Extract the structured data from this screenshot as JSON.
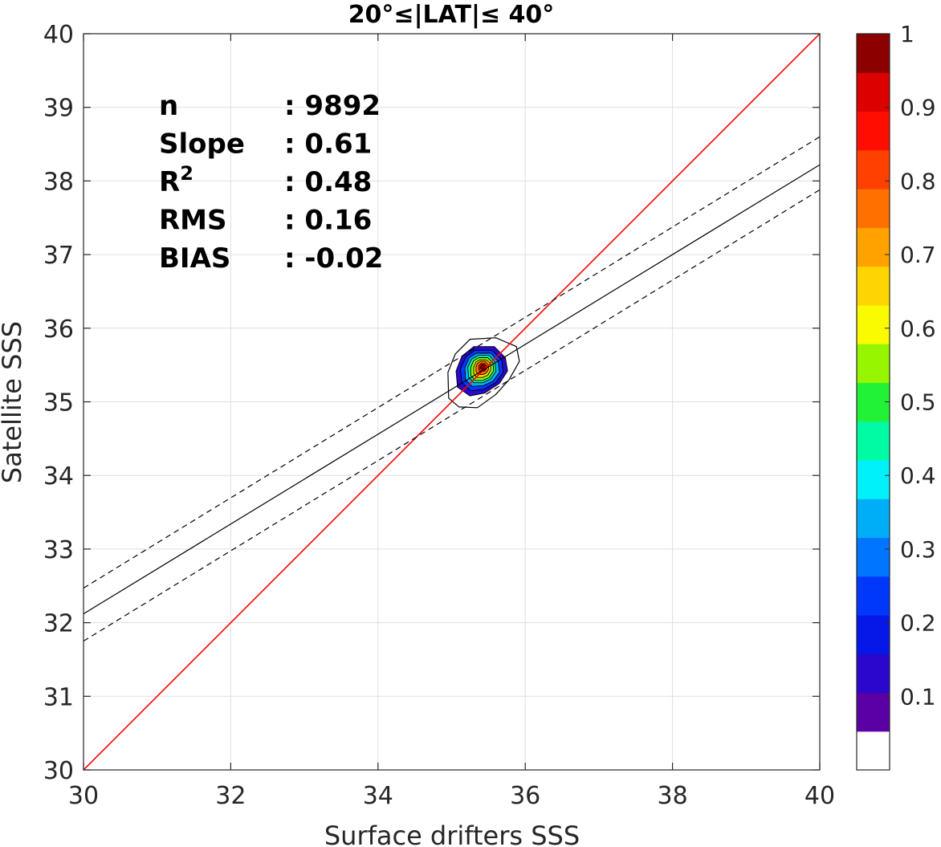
{
  "chart_data": {
    "type": "scatter",
    "subtype": "density-contour",
    "title": "20°≤|LAT|≤ 40°",
    "xlabel": "Surface drifters SSS",
    "ylabel": "Satellite SSS",
    "xlim": [
      30,
      40
    ],
    "ylim": [
      30,
      40
    ],
    "xticks": [
      "30",
      "32",
      "34",
      "36",
      "38",
      "40"
    ],
    "yticks": [
      "30",
      "31",
      "32",
      "33",
      "34",
      "35",
      "36",
      "37",
      "38",
      "39",
      "40"
    ],
    "grid": true,
    "stats": [
      {
        "label": "n",
        "sep": ": ",
        "value": "9892"
      },
      {
        "label": "Slope",
        "sep": ": ",
        "value": "0.61"
      },
      {
        "label": "R",
        "sup": "2",
        "sep": ": ",
        "value": "0.48"
      },
      {
        "label": "RMS",
        "sep": ": ",
        "value": "0.16"
      },
      {
        "label": "BIAS",
        "sep": ": ",
        "value": "-0.02"
      }
    ],
    "lines": [
      {
        "name": "one-to-one",
        "style": "solid",
        "color": "#ff0000",
        "points": [
          [
            30,
            30
          ],
          [
            40,
            40
          ]
        ]
      },
      {
        "name": "regression",
        "style": "solid",
        "color": "#000000",
        "points": [
          [
            30,
            32.12
          ],
          [
            40,
            38.22
          ]
        ]
      },
      {
        "name": "upper-bound",
        "style": "dashed",
        "color": "#000000",
        "points": [
          [
            30,
            32.47
          ],
          [
            40,
            38.6
          ]
        ]
      },
      {
        "name": "lower-bound",
        "style": "dashed",
        "color": "#000000",
        "points": [
          [
            30,
            31.75
          ],
          [
            40,
            37.88
          ]
        ]
      }
    ],
    "density": {
      "center": [
        35.42,
        35.47
      ],
      "levels": [
        {
          "level": 0.05,
          "points": [
            [
              35.25,
              35.85
            ],
            [
              35.6,
              35.87
            ],
            [
              35.88,
              35.75
            ],
            [
              35.92,
              35.55
            ],
            [
              35.78,
              35.3
            ],
            [
              35.6,
              35.1
            ],
            [
              35.35,
              34.92
            ],
            [
              35.1,
              34.93
            ],
            [
              34.96,
              35.05
            ],
            [
              34.95,
              35.4
            ],
            [
              35.05,
              35.65
            ]
          ]
        },
        {
          "level": 0.15,
          "points": [
            [
              35.3,
              35.75
            ],
            [
              35.58,
              35.75
            ],
            [
              35.73,
              35.6
            ],
            [
              35.76,
              35.42
            ],
            [
              35.65,
              35.25
            ],
            [
              35.45,
              35.12
            ],
            [
              35.25,
              35.08
            ],
            [
              35.08,
              35.2
            ],
            [
              35.06,
              35.42
            ],
            [
              35.14,
              35.62
            ]
          ]
        },
        {
          "level": 0.25,
          "points": [
            [
              35.32,
              35.7
            ],
            [
              35.55,
              35.7
            ],
            [
              35.68,
              35.57
            ],
            [
              35.7,
              35.4
            ],
            [
              35.6,
              35.26
            ],
            [
              35.44,
              35.17
            ],
            [
              35.26,
              35.15
            ],
            [
              35.14,
              35.26
            ],
            [
              35.12,
              35.45
            ],
            [
              35.2,
              35.62
            ]
          ]
        },
        {
          "level": 0.35,
          "points": [
            [
              35.34,
              35.66
            ],
            [
              35.53,
              35.66
            ],
            [
              35.63,
              35.55
            ],
            [
              35.65,
              35.4
            ],
            [
              35.56,
              35.28
            ],
            [
              35.43,
              35.22
            ],
            [
              35.28,
              35.21
            ],
            [
              35.19,
              35.3
            ],
            [
              35.18,
              35.46
            ],
            [
              35.24,
              35.6
            ]
          ]
        },
        {
          "level": 0.45,
          "points": [
            [
              35.36,
              35.63
            ],
            [
              35.51,
              35.63
            ],
            [
              35.59,
              35.54
            ],
            [
              35.6,
              35.41
            ],
            [
              35.53,
              35.31
            ],
            [
              35.42,
              35.26
            ],
            [
              35.3,
              35.26
            ],
            [
              35.23,
              35.34
            ],
            [
              35.22,
              35.47
            ],
            [
              35.27,
              35.58
            ]
          ]
        },
        {
          "level": 0.55,
          "points": [
            [
              35.37,
              35.6
            ],
            [
              35.49,
              35.6
            ],
            [
              35.56,
              35.53
            ],
            [
              35.57,
              35.42
            ],
            [
              35.51,
              35.33
            ],
            [
              35.42,
              35.29
            ],
            [
              35.32,
              35.29
            ],
            [
              35.26,
              35.36
            ],
            [
              35.26,
              35.47
            ],
            [
              35.3,
              35.56
            ]
          ]
        },
        {
          "level": 0.65,
          "points": [
            [
              35.38,
              35.57
            ],
            [
              35.47,
              35.57
            ],
            [
              35.53,
              35.52
            ],
            [
              35.53,
              35.43
            ],
            [
              35.49,
              35.36
            ],
            [
              35.42,
              35.33
            ],
            [
              35.34,
              35.33
            ],
            [
              35.3,
              35.39
            ],
            [
              35.3,
              35.47
            ],
            [
              35.33,
              35.54
            ]
          ]
        },
        {
          "level": 0.75,
          "points": [
            [
              35.39,
              35.55
            ],
            [
              35.46,
              35.55
            ],
            [
              35.5,
              35.5
            ],
            [
              35.5,
              35.44
            ],
            [
              35.47,
              35.39
            ],
            [
              35.42,
              35.37
            ],
            [
              35.36,
              35.37
            ],
            [
              35.33,
              35.41
            ],
            [
              35.33,
              35.48
            ],
            [
              35.35,
              35.52
            ]
          ]
        },
        {
          "level": 0.85,
          "points": [
            [
              35.4,
              35.52
            ],
            [
              35.45,
              35.52
            ],
            [
              35.47,
              35.49
            ],
            [
              35.47,
              35.45
            ],
            [
              35.45,
              35.42
            ],
            [
              35.41,
              35.41
            ],
            [
              35.38,
              35.42
            ],
            [
              35.37,
              35.45
            ],
            [
              35.37,
              35.49
            ]
          ]
        },
        {
          "level": 0.95,
          "points": [
            [
              35.41,
              35.5
            ],
            [
              35.44,
              35.5
            ],
            [
              35.45,
              35.48
            ],
            [
              35.44,
              35.45
            ],
            [
              35.41,
              35.44
            ],
            [
              35.39,
              35.46
            ],
            [
              35.4,
              35.49
            ]
          ]
        }
      ]
    },
    "colorbar": {
      "range": [
        0,
        1
      ],
      "ticks": [
        "0.1",
        "0.2",
        "0.3",
        "0.4",
        "0.5",
        "0.6",
        "0.7",
        "0.8",
        "0.9",
        "1"
      ],
      "colors": [
        "#ffffff",
        "#5b00a5",
        "#2b06cc",
        "#0618e8",
        "#0038fb",
        "#0075ff",
        "#00aef7",
        "#00f1f9",
        "#00fba4",
        "#22f235",
        "#97f500",
        "#fbfb00",
        "#ffd500",
        "#ffa200",
        "#ff7000",
        "#ff4000",
        "#ff0d00",
        "#dd0000",
        "#8c0000"
      ]
    }
  }
}
